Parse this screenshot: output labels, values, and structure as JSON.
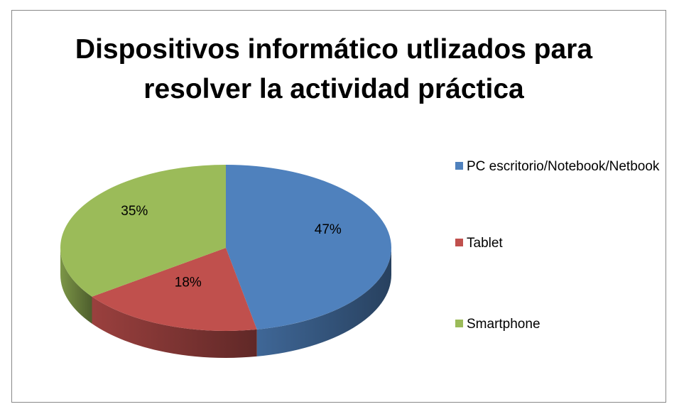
{
  "chart_data": {
    "type": "pie",
    "title": "Dispositivos informático utlizados para resolver la actividad práctica",
    "categories": [
      "PC escritorio/Notebook/Netbook",
      "Tablet",
      "Smartphone"
    ],
    "values": [
      47,
      18,
      35
    ],
    "value_labels": [
      "47%",
      "18%",
      "35%"
    ],
    "colors": [
      "#4f81bd",
      "#c0504d",
      "#9bbb59"
    ],
    "legend": "right"
  }
}
